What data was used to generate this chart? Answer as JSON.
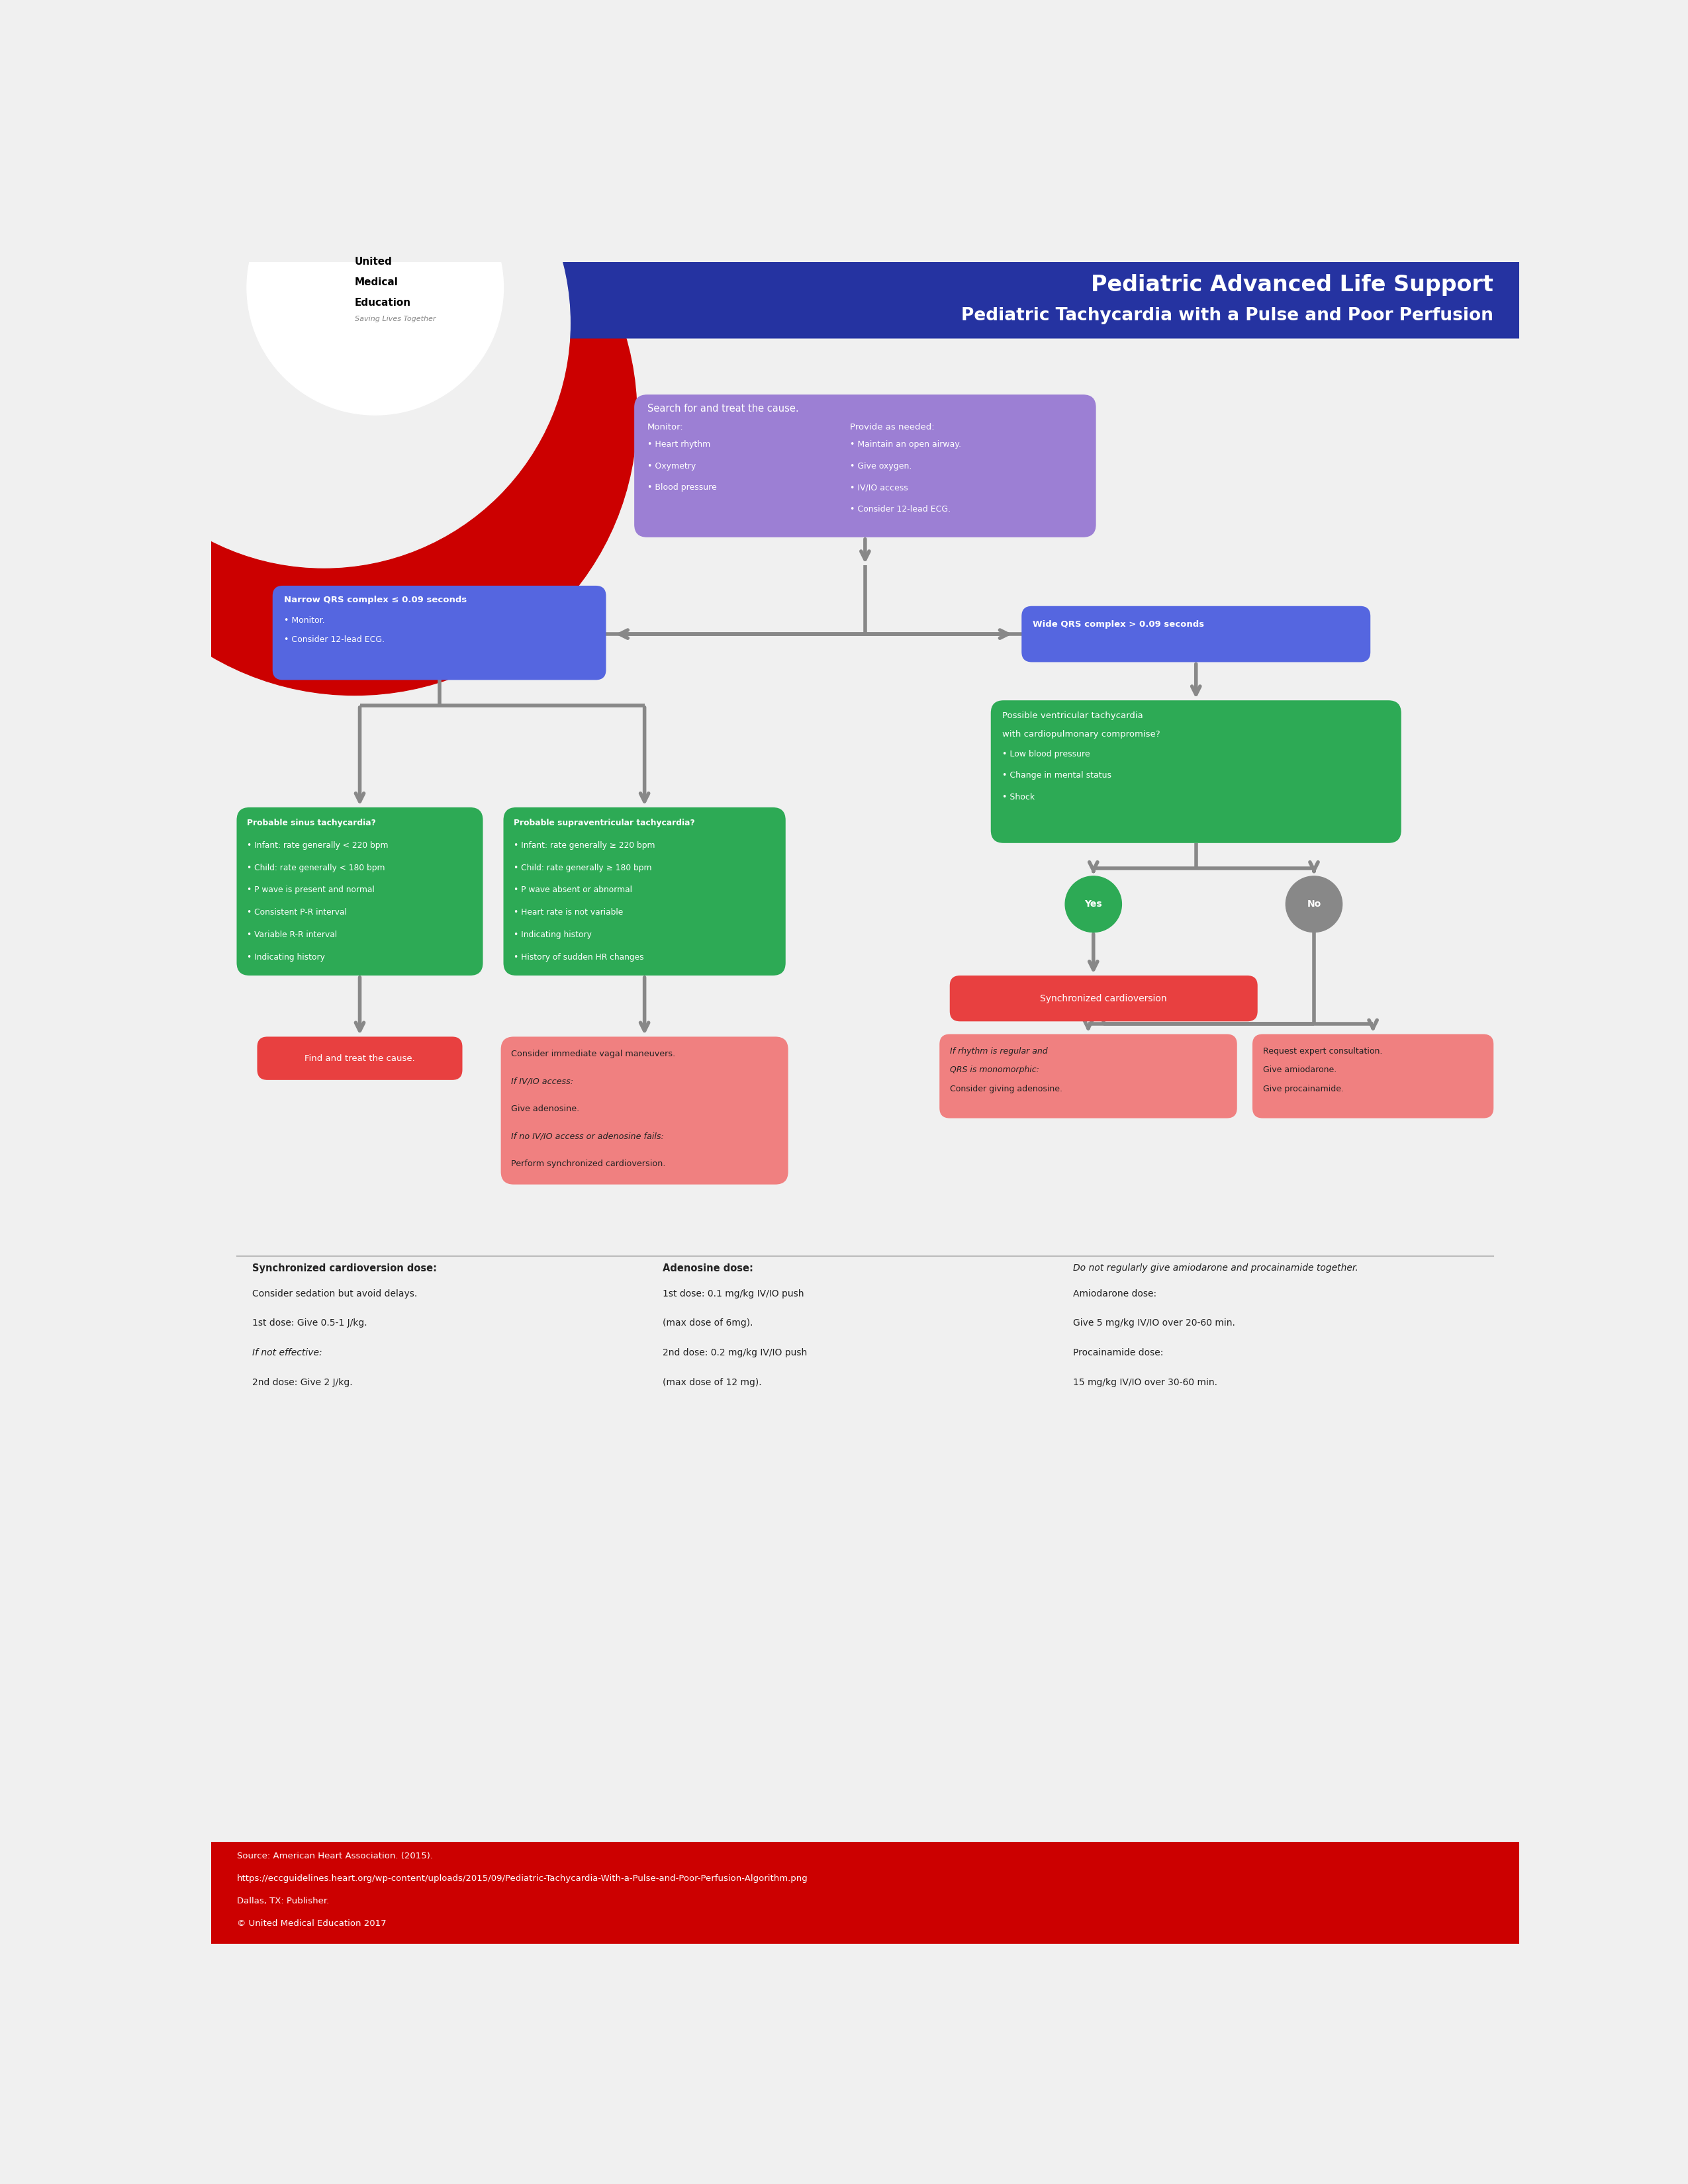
{
  "title_line1": "Pediatric Advanced Life Support",
  "title_line2": "Pediatric Tachycardia with a Pulse and Poor Perfusion",
  "header_bg": "#2533a1",
  "header_text_color": "#ffffff",
  "page_bg": "#f0f0f0",
  "red_accent": "#cc0000",
  "purple_box_color": "#9c7fd4",
  "green_box_color": "#2daa55",
  "blue_box_color": "#5566e0",
  "red_box_color": "#e84040",
  "salmon_box_color": "#f08080",
  "arrow_color": "#888888",
  "footer_bg": "#cc0000",
  "note_col3_italic": "Do not regularly give amiodarone and procainamide together."
}
